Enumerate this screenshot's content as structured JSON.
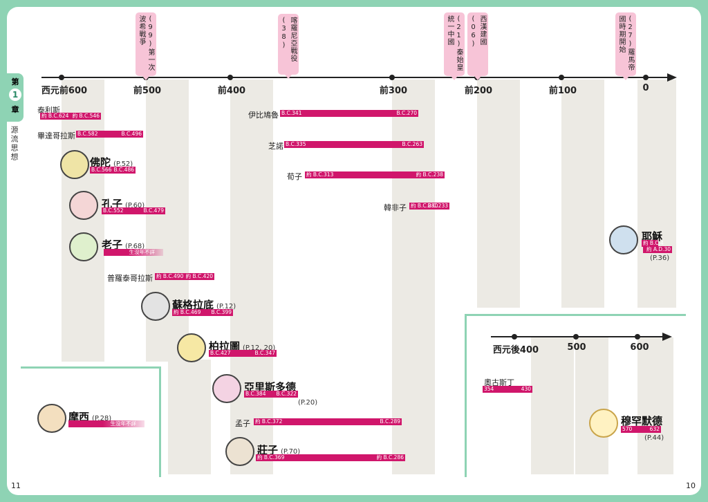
{
  "page": {
    "left_page_number": "11",
    "right_page_number": "10",
    "chapter_tab": {
      "prefix": "第",
      "number": "1",
      "suffix": "章",
      "title": "源流思想"
    }
  },
  "timeline_main": {
    "ticks": [
      "西元前600",
      "前500",
      "前400",
      "前300",
      "前200",
      "前100",
      "0"
    ]
  },
  "events": [
    {
      "label": "第一次波希戰爭",
      "number": "(99)"
    },
    {
      "label": "喀羅尼亞戰役",
      "number": "(38)"
    },
    {
      "label": "秦始皇統一中國",
      "number": "(21)"
    },
    {
      "label": "西漢建國",
      "number": "(06)"
    },
    {
      "label": "羅馬帝國時期開始",
      "number": "(27)"
    }
  ],
  "people": [
    {
      "name": "泰利斯",
      "start": "約 B.C.624",
      "end": "約 B.C.546"
    },
    {
      "name": "畢達哥拉斯",
      "start": "B.C.582",
      "end": "B.C.496"
    },
    {
      "name": "佛陀",
      "ref": "(P.52)",
      "start": "B.C.566",
      "end": "B.C.486"
    },
    {
      "name": "孔子",
      "ref": "(P.60)",
      "start": "B.C.552",
      "end": "B.C.479"
    },
    {
      "name": "老子",
      "ref": "(P.68)",
      "start": "生沒年不詳",
      "end": ""
    },
    {
      "name": "普羅泰哥拉斯",
      "start": "約 B.C.490",
      "end": "約 B.C.420"
    },
    {
      "name": "蘇格拉底",
      "ref": "(P.12)",
      "start": "約 B.C.469",
      "end": "B.C.399"
    },
    {
      "name": "柏拉圖",
      "ref": "(P.12, 20)",
      "start": "B.C.427",
      "end": "B.C.347"
    },
    {
      "name": "亞里斯多德",
      "ref": "(P.20)",
      "start": "B.C.384",
      "end": "B.C.322"
    },
    {
      "name": "孟子",
      "start": "約 B.C.372",
      "end": "B.C.289"
    },
    {
      "name": "莊子",
      "ref": "(P.70)",
      "start": "約 B.C.369",
      "end": "約 B.C.286"
    },
    {
      "name": "伊比鳩魯",
      "start": "B.C.341",
      "end": "B.C.270"
    },
    {
      "name": "芝諾",
      "start": "B.C.335",
      "end": "B.C.263"
    },
    {
      "name": "荀子",
      "start": "約 B.C.313",
      "end": "約 B.C.238"
    },
    {
      "name": "韓非子",
      "start": "約 B.C.280",
      "end": "B.C.233"
    },
    {
      "name": "耶穌",
      "ref": "(P.36)",
      "start": "約 B.C.4",
      "end": "約 A.D.30"
    },
    {
      "name": "摩西",
      "ref": "(P.28)",
      "start": "生沒年不詳",
      "end": ""
    }
  ],
  "timeline_later": {
    "ticks": [
      "西元後400",
      "500",
      "600"
    ],
    "people": [
      {
        "name": "奧古斯丁",
        "start": "354",
        "end": "430"
      },
      {
        "name": "穆罕默德",
        "ref": "(P.44)",
        "start": "570",
        "end": "632"
      }
    ]
  },
  "colors": {
    "border": "#8ed3b4",
    "bar": "#d0166b",
    "event_tag": "#f7c4d7",
    "column": "#eceae4",
    "frame_line": "#8ed3b4"
  }
}
